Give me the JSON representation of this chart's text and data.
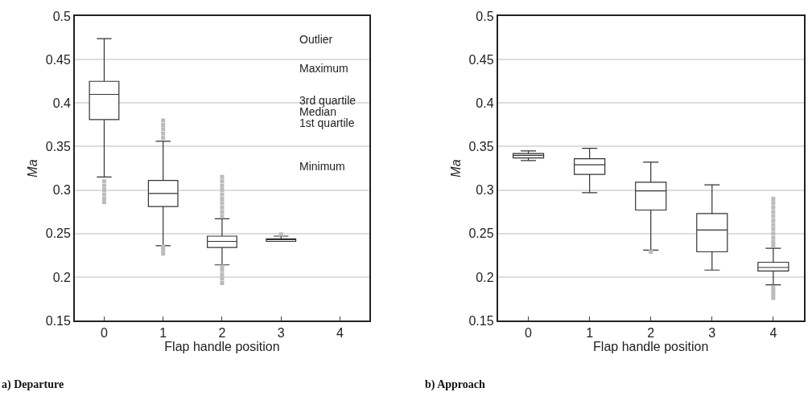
{
  "chart_data": [
    {
      "type": "box",
      "title": "a) Departure",
      "xlabel": "Flap handle position",
      "ylabel": "Ma",
      "categories": [
        "0",
        "1",
        "2",
        "3",
        "4"
      ],
      "ylim": [
        0.15,
        0.5
      ],
      "yticks": [
        0.15,
        0.2,
        0.25,
        0.3,
        0.35,
        0.4,
        0.45,
        0.5
      ],
      "grid": "y",
      "color": "#333333",
      "annotations": [
        "Outlier",
        "Maximum",
        "3rd quartile",
        "Median",
        "1st quartile",
        "Minimum"
      ],
      "boxes": [
        {
          "low": 0.315,
          "q1": 0.381,
          "median": 0.41,
          "q3": 0.425,
          "high": 0.474,
          "outliers": [
            0.286,
            0.29,
            0.295,
            0.3,
            0.305,
            0.31
          ]
        },
        {
          "low": 0.236,
          "q1": 0.281,
          "median": 0.296,
          "q3": 0.311,
          "high": 0.356,
          "outliers": [
            0.227,
            0.231,
            0.235,
            0.36,
            0.365,
            0.37,
            0.375,
            0.38
          ]
        },
        {
          "low": 0.214,
          "q1": 0.234,
          "median": 0.241,
          "q3": 0.247,
          "high": 0.267,
          "outliers": [
            0.193,
            0.198,
            0.203,
            0.208,
            0.212,
            0.27,
            0.275,
            0.28,
            0.285,
            0.29,
            0.295,
            0.3,
            0.305,
            0.31,
            0.315
          ]
        },
        {
          "low": 0.241,
          "q1": 0.241,
          "median": 0.243,
          "q3": 0.244,
          "high": 0.247,
          "outliers": [
            0.249
          ]
        },
        null
      ]
    },
    {
      "type": "box",
      "title": "b) Approach",
      "xlabel": "Flap handle position",
      "ylabel": "Ma",
      "categories": [
        "0",
        "1",
        "2",
        "3",
        "4"
      ],
      "ylim": [
        0.15,
        0.5
      ],
      "yticks": [
        0.15,
        0.2,
        0.25,
        0.3,
        0.35,
        0.4,
        0.45,
        0.5
      ],
      "grid": "y",
      "color": "#333333",
      "boxes": [
        {
          "low": 0.334,
          "q1": 0.337,
          "median": 0.34,
          "q3": 0.342,
          "high": 0.345
        },
        {
          "low": 0.297,
          "q1": 0.318,
          "median": 0.329,
          "q3": 0.336,
          "high": 0.348
        },
        {
          "low": 0.231,
          "q1": 0.277,
          "median": 0.299,
          "q3": 0.309,
          "high": 0.332,
          "outliers": [
            0.229
          ]
        },
        {
          "low": 0.208,
          "q1": 0.229,
          "median": 0.254,
          "q3": 0.273,
          "high": 0.306
        },
        {
          "low": 0.191,
          "q1": 0.207,
          "median": 0.211,
          "q3": 0.217,
          "high": 0.233,
          "outliers": [
            0.176,
            0.18,
            0.184,
            0.188,
            0.236,
            0.24,
            0.245,
            0.25,
            0.255,
            0.26,
            0.265,
            0.27,
            0.275,
            0.28,
            0.285,
            0.29
          ]
        }
      ]
    }
  ]
}
